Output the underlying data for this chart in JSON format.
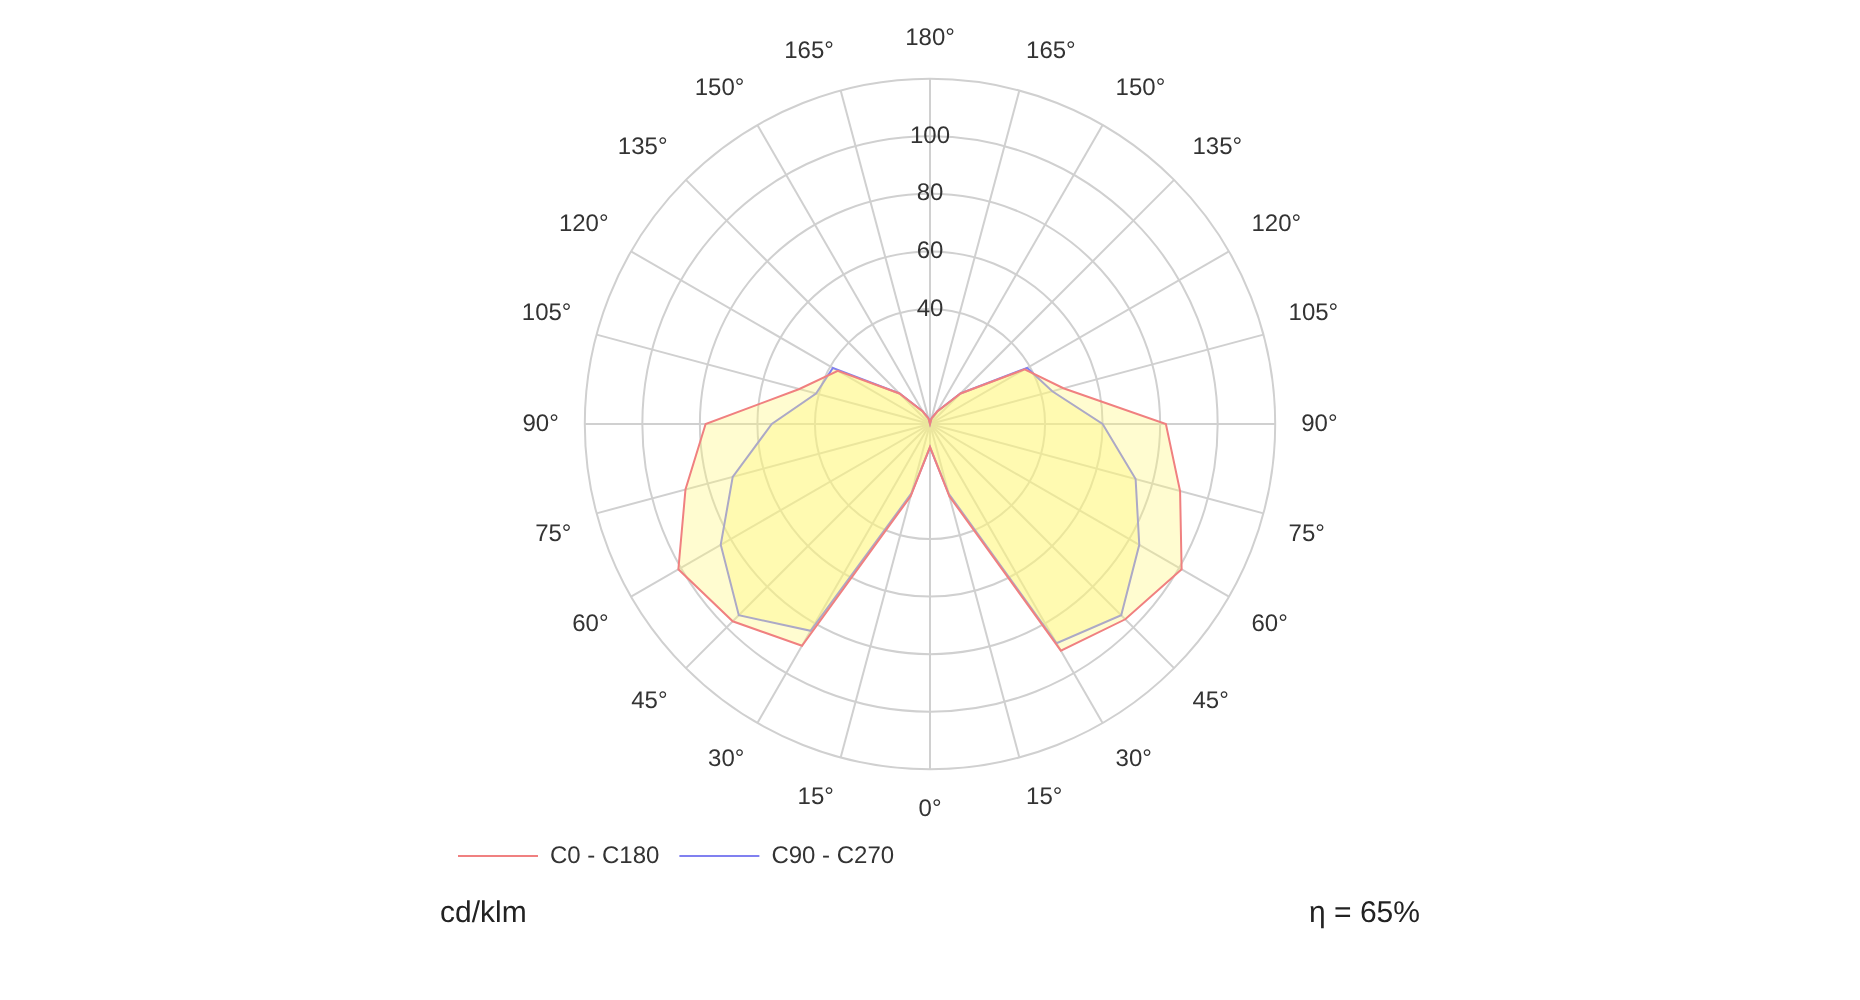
{
  "chart_data": {
    "type": "radar",
    "categories": [
      "180°",
      "165°",
      "150°",
      "135°",
      "120°",
      "105°",
      "90°",
      "75°",
      "60°",
      "45°",
      "30°",
      "15°",
      "0°",
      "15°",
      "30°",
      "45°",
      "60°",
      "75°",
      "90°",
      "105°",
      "120°",
      "135°",
      "150°",
      "165°"
    ],
    "series": [
      {
        "name": "C0 - C180",
        "color": "#f08080",
        "values": [
          0,
          2,
          5,
          15,
          38,
          48,
          82,
          90,
          101,
          96,
          91,
          26,
          8,
          26,
          89,
          97,
          101,
          88,
          78,
          47,
          37,
          15,
          5,
          2
        ]
      },
      {
        "name": "C90 - C270",
        "color": "#8080f0",
        "values": [
          0,
          2,
          5,
          15,
          39,
          44,
          60,
          74,
          84,
          94,
          88,
          25,
          8,
          25,
          83,
          94,
          84,
          71,
          55,
          41,
          39,
          15,
          5,
          2
        ]
      }
    ],
    "ylim": [
      0,
      120
    ],
    "yticks": [
      40,
      60,
      80,
      100
    ],
    "grid": true,
    "legend": "bottom left",
    "marker": "none",
    "annotations": [
      "cd/klm",
      "η = 65%"
    ]
  }
}
